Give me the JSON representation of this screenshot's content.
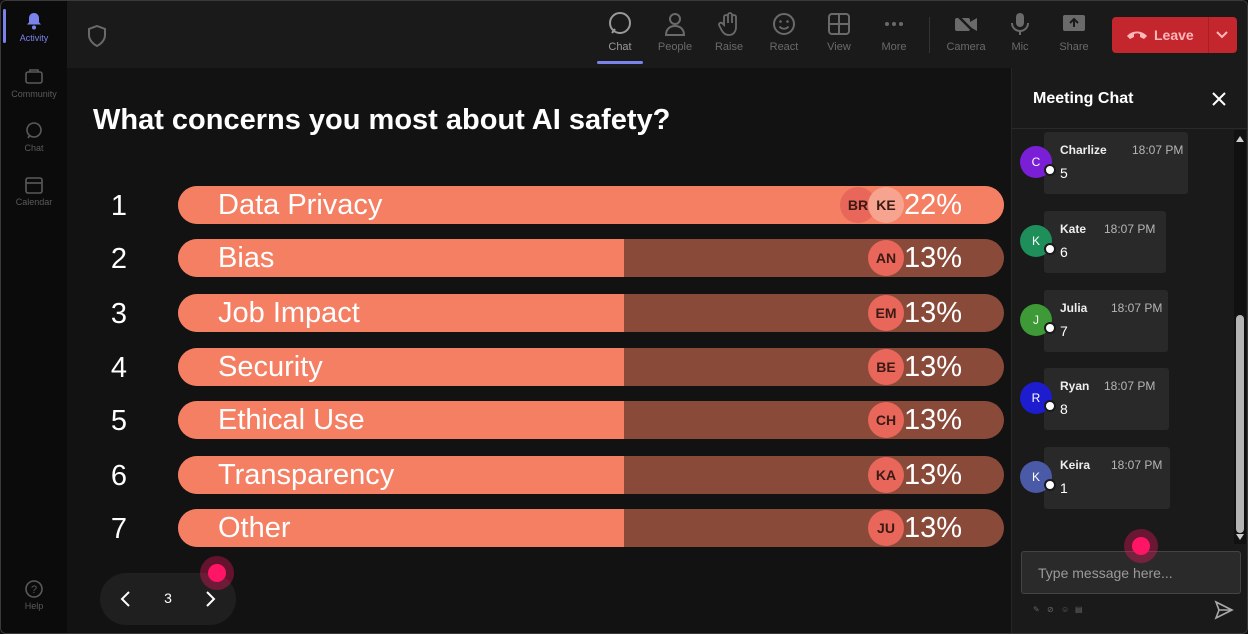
{
  "rail": {
    "items": [
      {
        "label": "Activity",
        "icon": "bell-icon",
        "active": true
      },
      {
        "label": "Community",
        "icon": "community-icon",
        "active": false
      },
      {
        "label": "Chat",
        "icon": "chat-icon",
        "active": false
      },
      {
        "label": "Calendar",
        "icon": "calendar-icon",
        "active": false
      }
    ],
    "help": "Help"
  },
  "toolbar": {
    "items": [
      {
        "label": "Chat",
        "icon": "chat-icon"
      },
      {
        "label": "People",
        "icon": "people-icon"
      },
      {
        "label": "Raise",
        "icon": "hand-icon"
      },
      {
        "label": "React",
        "icon": "smiley-icon"
      },
      {
        "label": "View",
        "icon": "grid-icon"
      },
      {
        "label": "More",
        "icon": "more-icon"
      },
      {
        "label": "Camera",
        "icon": "camera-off-icon"
      },
      {
        "label": "Mic",
        "icon": "mic-icon"
      },
      {
        "label": "Share",
        "icon": "share-icon"
      }
    ],
    "leave_label": "Leave",
    "leave_color": "#c4262e"
  },
  "poll": {
    "title": "What concerns you most about AI safety?",
    "accent": "#f47f63",
    "track": "#8a4a3a",
    "options": [
      {
        "num": "1",
        "label": "Data Privacy",
        "percent": "22%",
        "share": 1.0,
        "avatars": [
          "BR",
          "KE"
        ]
      },
      {
        "num": "2",
        "label": "Bias",
        "percent": "13%",
        "share": 0.54,
        "avatars": [
          "AN"
        ]
      },
      {
        "num": "3",
        "label": "Job Impact",
        "percent": "13%",
        "share": 0.54,
        "avatars": [
          "EM"
        ]
      },
      {
        "num": "4",
        "label": "Security",
        "percent": "13%",
        "share": 0.54,
        "avatars": [
          "BE"
        ]
      },
      {
        "num": "5",
        "label": "Ethical Use",
        "percent": "13%",
        "share": 0.54,
        "avatars": [
          "CH"
        ]
      },
      {
        "num": "6",
        "label": "Transparency",
        "percent": "13%",
        "share": 0.54,
        "avatars": [
          "KA"
        ]
      },
      {
        "num": "7",
        "label": "Other",
        "percent": "13%",
        "share": 0.54,
        "avatars": [
          "JU"
        ]
      }
    ]
  },
  "pager": {
    "page": "3"
  },
  "chat": {
    "title": "Meeting Chat",
    "messages": [
      {
        "initial": "C",
        "name": "Charlize",
        "time": "18:07 PM",
        "text": "5",
        "color": "#7b1fd6"
      },
      {
        "initial": "K",
        "name": "Kate",
        "time": "18:07 PM",
        "text": "6",
        "color": "#1e8f5a"
      },
      {
        "initial": "J",
        "name": "Julia",
        "time": "18:07 PM",
        "text": "7",
        "color": "#3d9a36"
      },
      {
        "initial": "R",
        "name": "Ryan",
        "time": "18:07 PM",
        "text": "8",
        "color": "#1d1ccf"
      },
      {
        "initial": "K",
        "name": "Keira",
        "time": "18:07 PM",
        "text": "1",
        "color": "#4a5aa6"
      }
    ],
    "placeholder": "Type message here..."
  }
}
